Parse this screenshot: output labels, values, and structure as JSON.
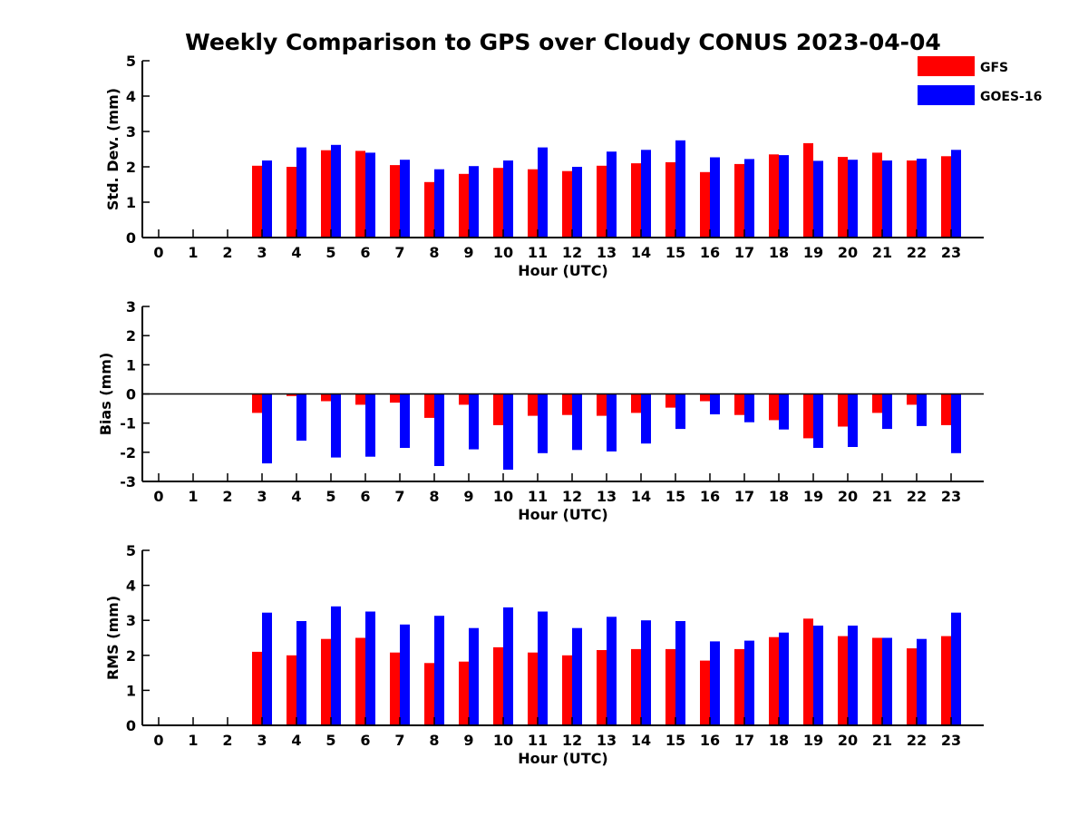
{
  "title": "Weekly Comparison to GPS over Cloudy CONUS 2023-04-04",
  "colors": {
    "gfs": "#ff0000",
    "goes16": "#0000ff",
    "axis": "#000000"
  },
  "legend": {
    "placement": "top-right",
    "entries": [
      {
        "name": "GFS",
        "color": "#ff0000"
      },
      {
        "name": "GOES-16",
        "color": "#0000ff"
      }
    ]
  },
  "chart_data": [
    {
      "type": "bar",
      "xlabel": "Hour (UTC)",
      "ylabel": "Std. Dev. (mm)",
      "ylim": [
        0,
        5
      ],
      "yticks": [
        0,
        1,
        2,
        3,
        4,
        5
      ],
      "categories": [
        0,
        1,
        2,
        3,
        4,
        5,
        6,
        7,
        8,
        9,
        10,
        11,
        12,
        13,
        14,
        15,
        16,
        17,
        18,
        19,
        20,
        21,
        22,
        23
      ],
      "series": [
        {
          "name": "GFS",
          "values": [
            null,
            null,
            null,
            2.03,
            2.0,
            2.47,
            2.45,
            2.05,
            1.57,
            1.8,
            1.97,
            1.93,
            1.88,
            2.03,
            2.1,
            2.13,
            1.85,
            2.08,
            2.35,
            2.67,
            2.28,
            2.4,
            2.18,
            2.3
          ]
        },
        {
          "name": "GOES-16",
          "values": [
            null,
            null,
            null,
            2.18,
            2.55,
            2.62,
            2.4,
            2.2,
            1.93,
            2.02,
            2.18,
            2.55,
            2.0,
            2.43,
            2.48,
            2.75,
            2.27,
            2.22,
            2.33,
            2.17,
            2.2,
            2.18,
            2.23,
            2.48
          ]
        }
      ]
    },
    {
      "type": "bar",
      "xlabel": "Hour (UTC)",
      "ylabel": "Bias (mm)",
      "ylim": [
        -3,
        3
      ],
      "yticks": [
        -3,
        -2,
        -1,
        0,
        1,
        2,
        3
      ],
      "zero_line": true,
      "categories": [
        0,
        1,
        2,
        3,
        4,
        5,
        6,
        7,
        8,
        9,
        10,
        11,
        12,
        13,
        14,
        15,
        16,
        17,
        18,
        19,
        20,
        21,
        22,
        23
      ],
      "series": [
        {
          "name": "GFS",
          "values": [
            null,
            null,
            null,
            -0.65,
            -0.07,
            -0.25,
            -0.37,
            -0.3,
            -0.82,
            -0.37,
            -1.07,
            -0.75,
            -0.72,
            -0.75,
            -0.65,
            -0.47,
            -0.25,
            -0.72,
            -0.9,
            -1.52,
            -1.12,
            -0.65,
            -0.37,
            -1.07
          ]
        },
        {
          "name": "GOES-16",
          "values": [
            null,
            null,
            null,
            -2.38,
            -1.6,
            -2.18,
            -2.15,
            -1.85,
            -2.47,
            -1.9,
            -2.6,
            -2.03,
            -1.92,
            -1.97,
            -1.7,
            -1.2,
            -0.7,
            -0.97,
            -1.22,
            -1.85,
            -1.82,
            -1.2,
            -1.1,
            -2.03
          ]
        }
      ]
    },
    {
      "type": "bar",
      "xlabel": "Hour (UTC)",
      "ylabel": "RMS (mm)",
      "ylim": [
        0,
        5
      ],
      "yticks": [
        0,
        1,
        2,
        3,
        4,
        5
      ],
      "categories": [
        0,
        1,
        2,
        3,
        4,
        5,
        6,
        7,
        8,
        9,
        10,
        11,
        12,
        13,
        14,
        15,
        16,
        17,
        18,
        19,
        20,
        21,
        22,
        23
      ],
      "series": [
        {
          "name": "GFS",
          "values": [
            null,
            null,
            null,
            2.1,
            2.0,
            2.47,
            2.5,
            2.08,
            1.78,
            1.82,
            2.23,
            2.08,
            2.0,
            2.15,
            2.18,
            2.18,
            1.85,
            2.18,
            2.52,
            3.05,
            2.55,
            2.5,
            2.2,
            2.55
          ]
        },
        {
          "name": "GOES-16",
          "values": [
            null,
            null,
            null,
            3.22,
            2.98,
            3.4,
            3.25,
            2.88,
            3.13,
            2.78,
            3.37,
            3.25,
            2.78,
            3.1,
            3.0,
            2.98,
            2.4,
            2.42,
            2.65,
            2.85,
            2.85,
            2.5,
            2.47,
            3.22
          ]
        }
      ]
    }
  ]
}
